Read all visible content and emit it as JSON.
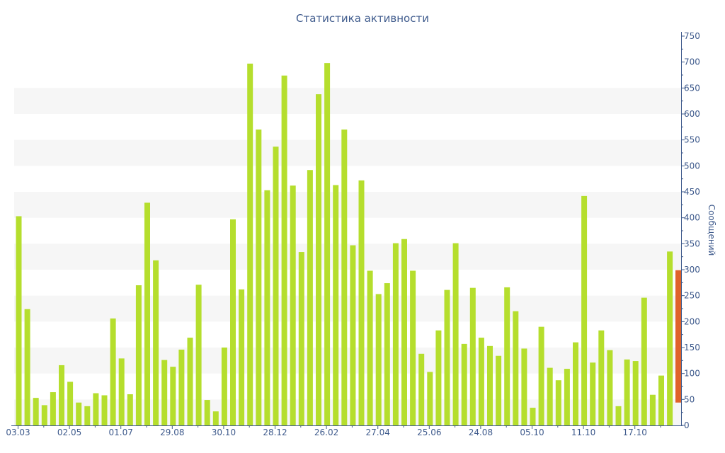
{
  "chart_data": {
    "type": "bar",
    "title": "Статистика активности",
    "xlabel": "",
    "ylabel": "Сообщений",
    "ylim": [
      0,
      750
    ],
    "y_ticks": [
      0,
      50,
      100,
      150,
      200,
      250,
      300,
      350,
      400,
      450,
      500,
      550,
      600,
      650,
      700,
      750
    ],
    "y_axis_position": "right",
    "x_tick_labels": [
      {
        "index": 0,
        "label": "03.03"
      },
      {
        "index": 6,
        "label": "02.05"
      },
      {
        "index": 12,
        "label": "01.07"
      },
      {
        "index": 18,
        "label": "29.08"
      },
      {
        "index": 24,
        "label": "30.10"
      },
      {
        "index": 30,
        "label": "28.12"
      },
      {
        "index": 36,
        "label": "26.02"
      },
      {
        "index": 42,
        "label": "27.04"
      },
      {
        "index": 48,
        "label": "25.06"
      },
      {
        "index": 54,
        "label": "24.08"
      },
      {
        "index": 60,
        "label": "05.10"
      },
      {
        "index": 66,
        "label": "11.10"
      },
      {
        "index": 72,
        "label": "17.10"
      }
    ],
    "values": [
      403,
      224,
      53,
      39,
      64,
      116,
      84,
      44,
      37,
      62,
      58,
      206,
      129,
      60,
      270,
      429,
      318,
      126,
      113,
      146,
      169,
      271,
      49,
      27,
      150,
      397,
      262,
      697,
      570,
      453,
      537,
      674,
      462,
      334,
      492,
      638,
      698,
      463,
      570,
      347,
      472,
      298,
      253,
      274,
      351,
      359,
      298,
      138,
      103,
      183,
      261,
      351,
      157,
      265,
      169,
      153,
      134,
      266,
      220,
      148,
      34,
      190,
      111,
      87,
      109,
      160,
      442,
      121,
      183,
      145,
      37,
      127,
      124,
      246,
      59,
      96,
      335
    ],
    "highlight": {
      "low": 44,
      "high": 299,
      "color": "#e0622a"
    },
    "bar_color": "#b5de2d",
    "band_color": "#f6f6f6",
    "axis_color": "#3e5a8c",
    "grid": "alternating bands"
  }
}
